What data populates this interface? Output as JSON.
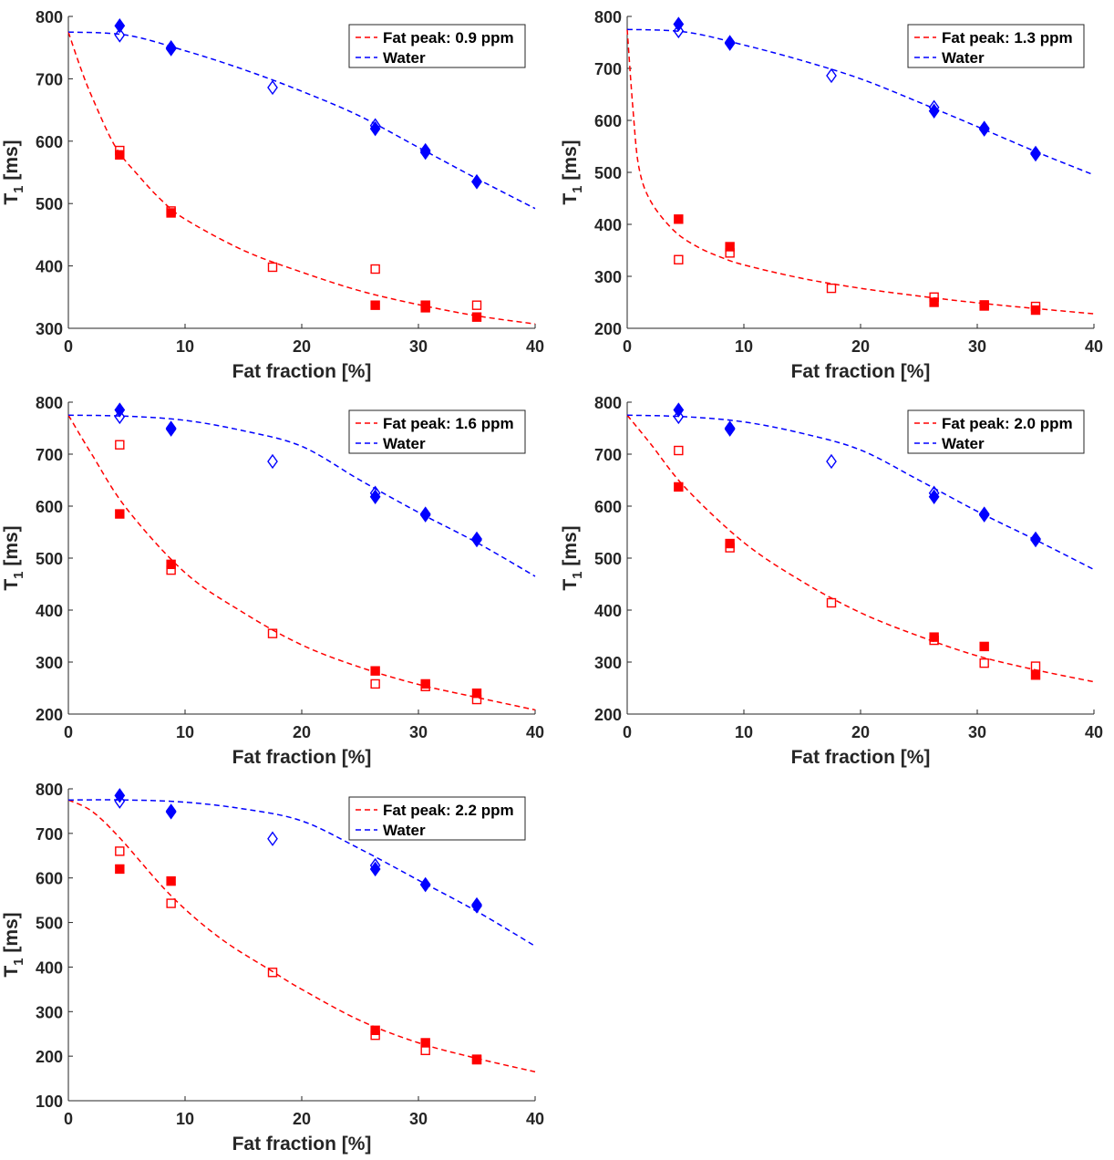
{
  "chart_data": [
    {
      "type": "scatter",
      "xlabel": "Fat fraction [%]",
      "ylabel_main": "T",
      "ylabel_sub": "1",
      "ylabel_unit": "[ms]",
      "xlim": [
        0,
        40
      ],
      "ylim": [
        300,
        800
      ],
      "xticks": [
        0,
        10,
        20,
        30,
        40
      ],
      "yticks": [
        300,
        400,
        500,
        600,
        700,
        800
      ],
      "legend_position": "top-right",
      "grid": false,
      "colors": {
        "fat": "#ff0000",
        "water": "#0000ff"
      },
      "fat_fit": {
        "name": "Fat peak: 0.9 ppm",
        "x": [
          0,
          1,
          2,
          4,
          6,
          8,
          10,
          15,
          20,
          25,
          30,
          35,
          40
        ],
        "y": [
          775,
          720,
          672,
          592,
          545,
          505,
          475,
          425,
          390,
          360,
          338,
          320,
          307
        ]
      },
      "water_fit": {
        "name": "Water",
        "x": [
          0,
          5,
          10,
          15,
          20,
          25,
          30,
          35,
          40
        ],
        "y": [
          775,
          770,
          745,
          715,
          680,
          640,
          590,
          540,
          492
        ]
      },
      "fat_filled": {
        "x": [
          4.4,
          8.8,
          26.3,
          30.6,
          30.6,
          35
        ],
        "y": [
          578,
          485,
          337,
          337,
          333,
          318
        ]
      },
      "fat_open": {
        "x": [
          4.4,
          8.8,
          17.5,
          26.3,
          30.6,
          35
        ],
        "y": [
          585,
          488,
          398,
          395,
          337,
          337
        ]
      },
      "water_filled": {
        "x": [
          4.4,
          8.8,
          26.3,
          30.6,
          35
        ],
        "y": [
          785,
          750,
          620,
          585,
          535
        ]
      },
      "water_open": {
        "x": [
          4.4,
          8.8,
          17.5,
          26.3,
          30.6,
          35
        ],
        "y": [
          770,
          748,
          686,
          625,
          582,
          535
        ]
      }
    },
    {
      "type": "scatter",
      "xlabel": "Fat fraction [%]",
      "ylabel_main": "T",
      "ylabel_sub": "1",
      "ylabel_unit": "[ms]",
      "xlim": [
        0,
        40
      ],
      "ylim": [
        200,
        800
      ],
      "xticks": [
        0,
        10,
        20,
        30,
        40
      ],
      "yticks": [
        200,
        300,
        400,
        500,
        600,
        700,
        800
      ],
      "legend_position": "top-right",
      "grid": false,
      "colors": {
        "fat": "#ff0000",
        "water": "#0000ff"
      },
      "fat_fit": {
        "name": "Fat peak: 1.3 ppm",
        "x": [
          0,
          0.5,
          1,
          2,
          4,
          6,
          8,
          10,
          15,
          20,
          25,
          30,
          35,
          40
        ],
        "y": [
          775,
          620,
          510,
          445,
          388,
          357,
          337,
          322,
          296,
          277,
          262,
          249,
          238,
          228
        ]
      },
      "water_fit": {
        "name": "Water",
        "x": [
          0,
          5,
          10,
          15,
          20,
          25,
          30,
          35,
          40
        ],
        "y": [
          775,
          770,
          745,
          715,
          680,
          635,
          588,
          540,
          495
        ]
      },
      "fat_filled": {
        "x": [
          4.4,
          8.8,
          26.3,
          30.6,
          35
        ],
        "y": [
          410,
          357,
          250,
          245,
          235
        ]
      },
      "fat_open": {
        "x": [
          4.4,
          8.8,
          17.5,
          26.3,
          30.6,
          35
        ],
        "y": [
          332,
          345,
          277,
          260,
          243,
          242
        ]
      },
      "water_filled": {
        "x": [
          4.4,
          8.8,
          26.3,
          30.6,
          35
        ],
        "y": [
          785,
          750,
          618,
          583,
          535
        ]
      },
      "water_open": {
        "x": [
          4.4,
          8.8,
          17.5,
          26.3,
          30.6,
          35
        ],
        "y": [
          772,
          748,
          686,
          625,
          585,
          537
        ]
      }
    },
    {
      "type": "scatter",
      "xlabel": "Fat fraction [%]",
      "ylabel_main": "T",
      "ylabel_sub": "1",
      "ylabel_unit": "[ms]",
      "xlim": [
        0,
        40
      ],
      "ylim": [
        200,
        800
      ],
      "xticks": [
        0,
        10,
        20,
        30,
        40
      ],
      "yticks": [
        200,
        300,
        400,
        500,
        600,
        700,
        800
      ],
      "legend_position": "top-right",
      "grid": false,
      "colors": {
        "fat": "#ff0000",
        "water": "#0000ff"
      },
      "fat_fit": {
        "name": "Fat peak: 1.6 ppm",
        "x": [
          0,
          2,
          5,
          10,
          15,
          20,
          25,
          30,
          35,
          40
        ],
        "y": [
          775,
          700,
          595,
          472,
          395,
          333,
          290,
          257,
          232,
          208
        ]
      },
      "water_fit": {
        "name": "Water",
        "x": [
          0,
          5,
          10,
          15,
          20,
          25,
          30,
          35,
          40
        ],
        "y": [
          775,
          773,
          765,
          745,
          715,
          650,
          588,
          530,
          465
        ]
      },
      "fat_filled": {
        "x": [
          4.4,
          8.8,
          26.3,
          30.6,
          35
        ],
        "y": [
          585,
          488,
          283,
          258,
          240
        ]
      },
      "fat_open": {
        "x": [
          4.4,
          8.8,
          17.5,
          26.3,
          30.6,
          35
        ],
        "y": [
          718,
          477,
          355,
          258,
          253,
          228
        ]
      },
      "water_filled": {
        "x": [
          4.4,
          8.8,
          26.3,
          30.6,
          35
        ],
        "y": [
          785,
          750,
          618,
          583,
          535
        ]
      },
      "water_open": {
        "x": [
          4.4,
          8.8,
          17.5,
          26.3,
          30.6,
          35
        ],
        "y": [
          772,
          748,
          686,
          625,
          585,
          537
        ]
      }
    },
    {
      "type": "scatter",
      "xlabel": "Fat fraction [%]",
      "ylabel_main": "T",
      "ylabel_sub": "1",
      "ylabel_unit": "[ms]",
      "xlim": [
        0,
        40
      ],
      "ylim": [
        200,
        800
      ],
      "xticks": [
        0,
        10,
        20,
        30,
        40
      ],
      "yticks": [
        200,
        300,
        400,
        500,
        600,
        700,
        800
      ],
      "legend_position": "top-right",
      "grid": false,
      "colors": {
        "fat": "#ff0000",
        "water": "#0000ff"
      },
      "fat_fit": {
        "name": "Fat peak: 2.0 ppm",
        "x": [
          0,
          2,
          5,
          10,
          15,
          20,
          25,
          30,
          35,
          40
        ],
        "y": [
          775,
          720,
          635,
          530,
          455,
          395,
          350,
          312,
          285,
          262
        ]
      },
      "water_fit": {
        "name": "Water",
        "x": [
          0,
          5,
          10,
          15,
          20,
          25,
          30,
          35,
          40
        ],
        "y": [
          775,
          772,
          762,
          740,
          708,
          650,
          590,
          535,
          478
        ]
      },
      "fat_filled": {
        "x": [
          4.4,
          8.8,
          26.3,
          30.6,
          35
        ],
        "y": [
          637,
          528,
          348,
          330,
          275
        ]
      },
      "fat_open": {
        "x": [
          4.4,
          8.8,
          17.5,
          26.3,
          30.6,
          35
        ],
        "y": [
          707,
          520,
          414,
          342,
          298,
          292
        ]
      },
      "water_filled": {
        "x": [
          4.4,
          8.8,
          26.3,
          30.6,
          35
        ],
        "y": [
          785,
          750,
          618,
          583,
          535
        ]
      },
      "water_open": {
        "x": [
          4.4,
          8.8,
          17.5,
          26.3,
          30.6,
          35
        ],
        "y": [
          772,
          748,
          686,
          625,
          585,
          537
        ]
      }
    },
    {
      "type": "scatter",
      "xlabel": "Fat fraction [%]",
      "ylabel_main": "T",
      "ylabel_sub": "1",
      "ylabel_unit": "[ms]",
      "xlim": [
        0,
        40
      ],
      "ylim": [
        100,
        800
      ],
      "xticks": [
        0,
        10,
        20,
        30,
        40
      ],
      "yticks": [
        100,
        200,
        300,
        400,
        500,
        600,
        700,
        800
      ],
      "legend_position": "top-right",
      "grid": false,
      "colors": {
        "fat": "#ff0000",
        "water": "#0000ff"
      },
      "fat_fit": {
        "name": "Fat peak: 2.2 ppm",
        "x": [
          0,
          2,
          4.4,
          8.8,
          13,
          17.5,
          20,
          25,
          30,
          35,
          40
        ],
        "y": [
          775,
          750,
          690,
          560,
          465,
          390,
          350,
          280,
          230,
          195,
          165
        ]
      },
      "water_fit": {
        "name": "Water",
        "x": [
          0,
          5,
          10,
          15,
          20,
          25,
          30,
          35,
          40
        ],
        "y": [
          775,
          775,
          770,
          755,
          728,
          665,
          595,
          525,
          447
        ]
      },
      "fat_filled": {
        "x": [
          4.4,
          8.8,
          26.3,
          30.6,
          35
        ],
        "y": [
          620,
          593,
          258,
          230,
          192
        ]
      },
      "fat_open": {
        "x": [
          4.4,
          8.8,
          17.5,
          26.3,
          30.6,
          35
        ],
        "y": [
          660,
          543,
          388,
          247,
          213,
          193
        ]
      },
      "water_filled": {
        "x": [
          4.4,
          8.8,
          26.3,
          30.6,
          35
        ],
        "y": [
          785,
          750,
          620,
          585,
          537
        ]
      },
      "water_open": {
        "x": [
          4.4,
          8.8,
          17.5,
          26.3,
          30.6,
          35
        ],
        "y": [
          772,
          748,
          688,
          628,
          585,
          540
        ]
      }
    }
  ]
}
